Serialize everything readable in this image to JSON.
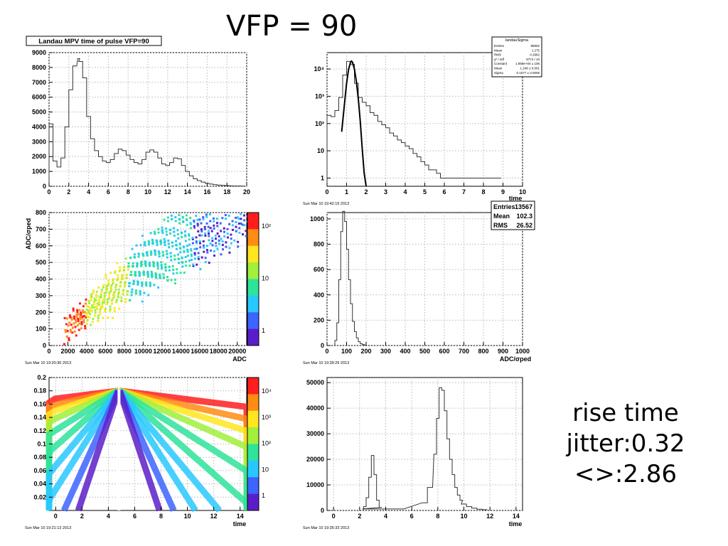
{
  "slide": {
    "title": "VFP = 90",
    "note_lines": [
      "rise time",
      "jitter:0.32",
      "<>:2.86"
    ]
  },
  "colors": {
    "hist_line": "#333333",
    "fit_line": "#000000",
    "grid": "#c8c8c8",
    "palette": [
      "#5a1ec8",
      "#3c64ff",
      "#28c8ff",
      "#2ee39a",
      "#a0f03c",
      "#ffe61e",
      "#ff8c14",
      "#ff1e1e"
    ]
  },
  "chart_data": [
    {
      "type": "histogram",
      "title": "Landau MPV time of pulse VFP=90",
      "xlim": [
        0,
        20
      ],
      "ylim": [
        0,
        9000
      ],
      "xticks": [
        0,
        2,
        4,
        6,
        8,
        10,
        12,
        14,
        16,
        18,
        20
      ],
      "yticks": [
        0,
        1000,
        2000,
        3000,
        4000,
        5000,
        6000,
        7000,
        8000,
        9000
      ],
      "xlabel": "",
      "grid": true,
      "x": [
        0.2,
        0.6,
        1.0,
        1.4,
        1.8,
        2.2,
        2.6,
        3.0,
        3.2,
        3.6,
        4.0,
        4.4,
        4.8,
        5.2,
        5.6,
        6.0,
        6.4,
        6.8,
        7.2,
        7.6,
        8.0,
        8.4,
        8.8,
        9.2,
        9.6,
        10.0,
        10.4,
        10.8,
        11.2,
        11.6,
        12.0,
        12.4,
        12.8,
        13.2,
        13.6,
        14.0,
        14.4,
        14.8,
        15.2,
        15.6,
        16.0,
        16.4,
        16.8,
        17.2,
        17.6,
        18.0,
        18.4,
        18.8,
        19.2,
        19.6
      ],
      "values": [
        4200,
        1700,
        1300,
        1900,
        4000,
        6500,
        8100,
        8600,
        8400,
        7300,
        4700,
        3200,
        2400,
        2000,
        1700,
        1600,
        1800,
        2200,
        2500,
        2400,
        2100,
        1800,
        1600,
        1500,
        1800,
        2300,
        2450,
        2300,
        1900,
        1500,
        1400,
        1600,
        1900,
        1850,
        1400,
        1000,
        700,
        500,
        380,
        280,
        200,
        150,
        110,
        80,
        60,
        45,
        30,
        20,
        15,
        10
      ],
      "timestamp": ""
    },
    {
      "type": "histogram",
      "scale": "log",
      "xlim": [
        0,
        10
      ],
      "ylim": [
        0.5,
        40000
      ],
      "xticks": [
        0,
        1,
        2,
        3,
        4,
        5,
        6,
        7,
        8,
        9,
        10
      ],
      "ytick_labels": [
        "1",
        "10",
        "10^2",
        "10^3",
        "10^4"
      ],
      "yticks": [
        1,
        10,
        100,
        1000,
        10000
      ],
      "xlabel": "time",
      "grid": true,
      "x": [
        0.1,
        0.3,
        0.5,
        0.7,
        0.9,
        1.1,
        1.3,
        1.5,
        1.7,
        1.9,
        2.1,
        2.3,
        2.5,
        2.7,
        2.9,
        3.1,
        3.3,
        3.5,
        3.7,
        3.9,
        4.1,
        4.3,
        4.5,
        4.7,
        4.9,
        5.1,
        5.3,
        5.5,
        5.7,
        5.9,
        6.1,
        6.5,
        7.1,
        8.3
      ],
      "values": [
        200,
        180,
        300,
        900,
        6000,
        19000,
        15000,
        3000,
        900,
        600,
        450,
        250,
        200,
        120,
        90,
        70,
        45,
        35,
        25,
        20,
        15,
        12,
        8,
        6,
        4,
        3,
        2,
        2,
        1.5,
        1,
        1,
        1,
        1,
        1
      ],
      "fit": {
        "x": [
          0.75,
          0.9,
          1.0,
          1.1,
          1.2,
          1.248,
          1.3,
          1.4,
          1.5,
          1.6,
          1.7,
          1.8,
          1.9,
          2.0
        ],
        "y": [
          50,
          600,
          3000,
          9500,
          17500,
          19590,
          18000,
          10000,
          3500,
          800,
          120,
          12,
          1.5,
          0.5
        ]
      },
      "stats": {
        "title": "landauSigma",
        "rows": [
          [
            "Entries",
            "86902"
          ],
          [
            "Mean",
            "1.275"
          ],
          [
            "RMS",
            "0.2962"
          ],
          [
            "χ² / ndf",
            "5774 / 10"
          ],
          [
            "Constant",
            "1.959e+04 ± 106"
          ],
          [
            "Mean",
            "1.248 ± 0.001"
          ],
          [
            "Sigma",
            "0.1577 ± 0.0006"
          ]
        ]
      },
      "timestamp": "Sun Mar 10 19:42:19 2013"
    },
    {
      "type": "heatmap",
      "xlim": [
        0,
        21000
      ],
      "ylim": [
        0,
        800
      ],
      "xticks": [
        0,
        2000,
        4000,
        6000,
        8000,
        10000,
        12000,
        14000,
        16000,
        18000,
        20000
      ],
      "xtick_labels": [
        "0",
        "2000",
        "4000",
        "6000",
        "8000",
        "10000",
        "12000",
        "14000",
        "16000",
        "18000",
        "20000"
      ],
      "yticks": [
        0,
        100,
        200,
        300,
        400,
        500,
        600,
        700,
        800
      ],
      "xlabel": "ADC",
      "ylabel": "ADC/σped",
      "colorbar_labels": [
        "1",
        "10",
        "10²"
      ],
      "timestamp": "Sun Mar 10 19:20:30 2013"
    },
    {
      "type": "histogram",
      "xlim": [
        0,
        1000
      ],
      "ylim": [
        0,
        1050
      ],
      "xticks": [
        0,
        100,
        200,
        300,
        400,
        500,
        600,
        700,
        800,
        900,
        1000
      ],
      "yticks": [
        0,
        200,
        400,
        600,
        800,
        1000
      ],
      "xlabel": "ADC/σped",
      "grid": true,
      "x": [
        45,
        55,
        65,
        75,
        85,
        95,
        105,
        115,
        125,
        135,
        145,
        155,
        165,
        175,
        185,
        195
      ],
      "values": [
        40,
        180,
        520,
        900,
        1060,
        980,
        760,
        520,
        330,
        190,
        110,
        60,
        30,
        15,
        8,
        3
      ],
      "stats": {
        "rows": [
          [
            "Entries",
            "13567"
          ],
          [
            "Mean",
            "102.3"
          ],
          [
            "RMS",
            "26.52"
          ]
        ]
      },
      "timestamp": "Sun Mar 10 19:39:29 2013"
    },
    {
      "type": "heatmap",
      "xlim": [
        -0.5,
        14.5
      ],
      "ylim": [
        0,
        0.2
      ],
      "xticks": [
        0,
        2,
        4,
        6,
        8,
        10,
        12,
        14
      ],
      "yticks": [
        0.02,
        0.04,
        0.06,
        0.08,
        0.1,
        0.12,
        0.14,
        0.16,
        0.18,
        0.2
      ],
      "xlabel": "time",
      "colorbar_labels": [
        "1",
        "10",
        "10²",
        "10³",
        "10⁴"
      ],
      "timestamp": "Sun Mar 10 19:21:13 2013"
    },
    {
      "type": "histogram",
      "xlim": [
        -0.5,
        14.5
      ],
      "ylim": [
        0,
        52000
      ],
      "xticks": [
        0,
        2,
        4,
        6,
        8,
        10,
        12,
        14
      ],
      "yticks": [
        0,
        10000,
        20000,
        30000,
        40000,
        50000
      ],
      "xlabel": "time",
      "grid": true,
      "x": [
        2.4,
        2.6,
        2.8,
        3.0,
        3.2,
        3.4,
        3.6,
        3.8,
        7.0,
        7.4,
        7.8,
        8.0,
        8.2,
        8.4,
        8.6,
        8.8,
        9.0,
        9.2,
        9.4,
        9.6,
        9.8,
        10.0,
        10.4,
        10.8,
        11.2,
        11.6
      ],
      "values": [
        1500,
        5000,
        13000,
        21500,
        14000,
        4000,
        1200,
        600,
        3000,
        9000,
        22000,
        36000,
        48000,
        47000,
        39000,
        28000,
        20000,
        14000,
        9000,
        6000,
        4000,
        2500,
        1500,
        900,
        500,
        300
      ],
      "timestamp": "Sun Mar 10 19:35:33 2013"
    }
  ]
}
